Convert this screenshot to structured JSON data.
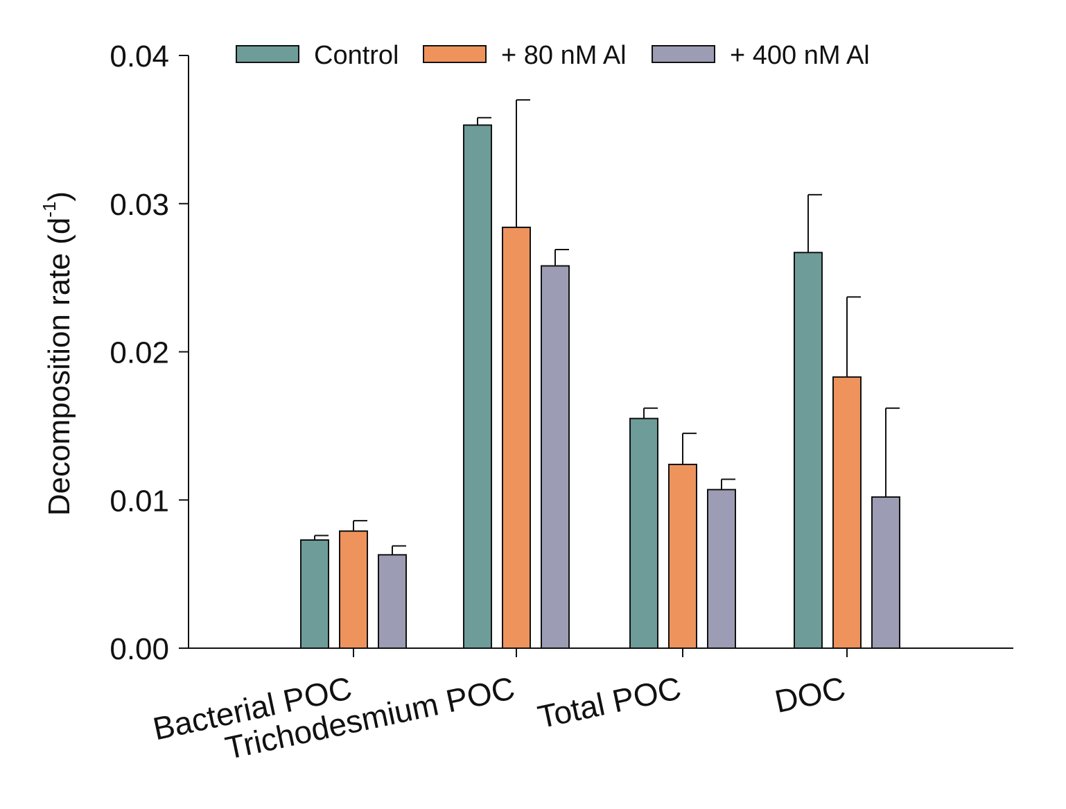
{
  "chart_data": {
    "type": "bar",
    "title": "",
    "xlabel": "",
    "ylabel_main": "Decomposition rate (d",
    "ylabel_sup": "-1",
    "ylabel_close": ")",
    "ylim": [
      0,
      0.04
    ],
    "yticks": [
      "0.00",
      "0.01",
      "0.02",
      "0.03",
      "0.04"
    ],
    "categories": [
      "Bacterial POC",
      "Trichodesmium POC",
      "Total POC",
      "DOC"
    ],
    "series": [
      {
        "name": "Control",
        "color": "#6e9c99",
        "values": [
          0.0073,
          0.0353,
          0.0155,
          0.0267
        ],
        "errors": [
          0.0003,
          0.0005,
          0.0007,
          0.0039
        ]
      },
      {
        "name": "+ 80 nM Al",
        "color": "#ef935d",
        "values": [
          0.0079,
          0.0284,
          0.0124,
          0.0183
        ],
        "errors": [
          0.0007,
          0.0086,
          0.0021,
          0.0054
        ]
      },
      {
        "name": "+ 400 nM Al",
        "color": "#9c9cb4",
        "values": [
          0.0063,
          0.0258,
          0.0107,
          0.0102
        ],
        "errors": [
          0.0006,
          0.0011,
          0.0007,
          0.006
        ]
      }
    ],
    "legend_position": "top",
    "grid": false
  }
}
